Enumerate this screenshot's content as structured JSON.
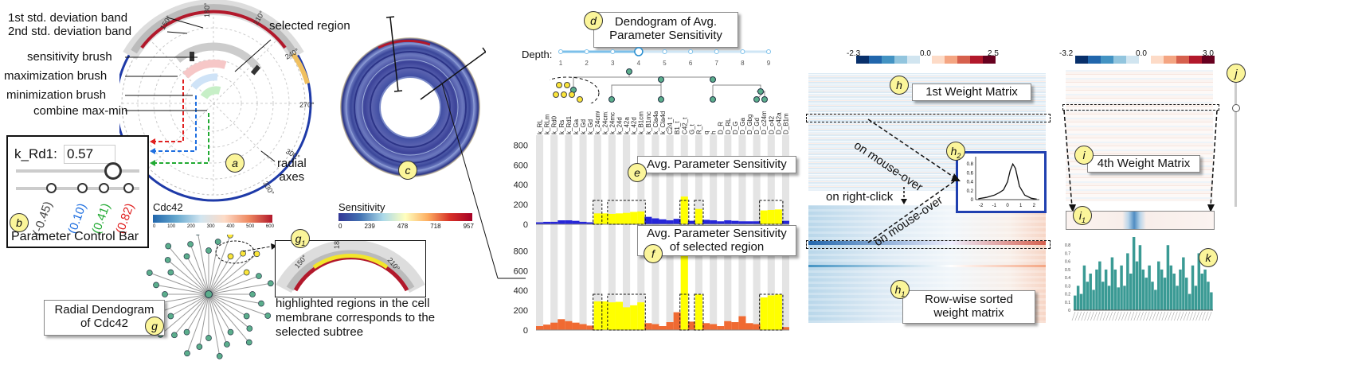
{
  "panel_a": {
    "badge": "a",
    "labels": {
      "std1": "1st std. deviation band",
      "std2": "2nd std. deviation band",
      "sens_brush": "sensitivity brush",
      "max_brush": "maximization brush",
      "min_brush": "minimization brush",
      "combine": "combine max-min",
      "radial_axes": "radial\naxes",
      "selected_region": "selected region"
    },
    "angles": [
      "0°",
      "30°",
      "60°",
      "90°",
      "120°",
      "150°",
      "180°",
      "210°",
      "240°",
      "270°",
      "300°",
      "330°"
    ]
  },
  "panel_b": {
    "badge": "b",
    "param_name": "k_Rd1:",
    "param_value": "0.57",
    "title": "Parameter Control Bar",
    "values": [
      "(-0.45)",
      "(0.10)",
      "(0.41)",
      "(0.82)"
    ],
    "colors": [
      "#444444",
      "#1f6fe0",
      "#22aa33",
      "#e02020"
    ]
  },
  "panel_c": {
    "badge": "c",
    "legend_title": "Sensitivity",
    "legend_ticks": [
      "0",
      "239",
      "478",
      "718",
      "957"
    ]
  },
  "panel_cdc": {
    "legend_title": "Cdc42",
    "legend_ticks": [
      "0",
      "100",
      "200",
      "300",
      "400",
      "500",
      "600"
    ]
  },
  "panel_d": {
    "badge": "d",
    "title": "Dendogram of Avg.\nParameter Sensitivity",
    "depth_label": "Depth:",
    "depth_ticks": [
      "1",
      "2",
      "3",
      "4",
      "5",
      "6",
      "7",
      "8",
      "9"
    ],
    "depth_value": 4
  },
  "panel_e": {
    "badge": "e",
    "title": "Avg. Parameter Sensitivity",
    "yticks": [
      "800",
      "600",
      "400",
      "200",
      "0"
    ]
  },
  "panel_f": {
    "badge": "f",
    "title": "Avg. Parameter Sensitivity\nof selected region",
    "yticks": [
      "800",
      "600",
      "400",
      "200",
      "0"
    ]
  },
  "params": [
    "k_RL",
    "k_RLm",
    "k_Rd0",
    "k_Rs",
    "k_Rd1",
    "k_Ga",
    "k_Gd",
    "k_Gd",
    "k_24cm0",
    "k_24cm1",
    "k_24mc",
    "k_24d",
    "k_42a",
    "k_42d",
    "k_B1cm",
    "k_B1mc",
    "k_Cla4a",
    "k_Cla4d",
    "C24_t",
    "B1_t",
    "C42_t",
    "G_t",
    "R_t",
    "q",
    "h",
    "D_R",
    "D_RL",
    "D_G",
    "D_Ga",
    "D_Gbg",
    "D_Gd",
    "D_c24m",
    "D_c42",
    "D_c42a",
    "D_B1m"
  ],
  "chart_data": [
    {
      "type": "bar",
      "title": "Avg. Parameter Sensitivity",
      "categories_ref": "params",
      "ylim": [
        0,
        900
      ],
      "values": [
        20,
        25,
        25,
        40,
        40,
        35,
        25,
        20,
        110,
        110,
        105,
        110,
        115,
        125,
        130,
        75,
        60,
        50,
        40,
        55,
        280,
        35,
        155,
        45,
        40,
        30,
        40,
        35,
        30,
        30,
        30,
        140,
        145,
        150,
        35
      ],
      "highlighted": [
        8,
        10,
        11,
        12,
        13,
        14,
        20,
        22,
        31,
        32
      ]
    },
    {
      "type": "bar",
      "title": "Avg. Parameter Sensitivity of selected region",
      "categories_ref": "params",
      "ylim": [
        0,
        900
      ],
      "values": [
        40,
        55,
        75,
        110,
        90,
        75,
        60,
        45,
        290,
        290,
        280,
        285,
        230,
        250,
        280,
        70,
        60,
        40,
        80,
        180,
        880,
        85,
        360,
        70,
        60,
        40,
        90,
        80,
        140,
        70,
        60,
        330,
        350,
        360,
        30
      ],
      "highlighted": [
        8,
        10,
        11,
        12,
        13,
        14,
        20,
        22,
        31,
        32
      ]
    },
    {
      "type": "bar",
      "title": "k",
      "values": [
        0.18,
        0.3,
        0.2,
        0.55,
        0.35,
        0.45,
        0.25,
        0.5,
        0.6,
        0.35,
        0.5,
        0.3,
        0.65,
        0.5,
        0.28,
        0.55,
        0.3,
        0.7,
        0.45,
        0.9,
        0.6,
        0.8,
        0.5,
        0.4,
        0.55,
        0.35,
        0.25,
        0.6,
        0.5,
        0.4,
        0.8,
        0.55,
        0.45,
        0.3,
        0.5,
        0.65,
        0.4,
        0.2,
        0.55,
        0.3,
        0.7,
        0.45,
        0.5,
        0.35,
        0.22
      ],
      "ylim": [
        0,
        0.9
      ],
      "yticks": [
        "0.8",
        "0.7",
        "0.6",
        "0.5",
        "0.4",
        "0.3",
        "0.2",
        "0.1",
        "0"
      ]
    },
    {
      "type": "line",
      "title": "density",
      "x": [
        -2.2,
        -1.6,
        -1.0,
        -0.6,
        -0.3,
        0.0,
        0.2,
        0.4,
        0.6,
        0.9,
        1.3,
        1.8,
        2.2
      ],
      "values": [
        0.02,
        0.05,
        0.1,
        0.16,
        0.22,
        0.4,
        0.65,
        0.8,
        0.7,
        0.3,
        0.1,
        0.03,
        0.01
      ],
      "xticks": [
        "-2",
        "-1",
        "0",
        "1",
        "2"
      ],
      "yticks": [
        "0.8",
        "0.6",
        "0.4",
        "0.2",
        "0"
      ]
    }
  ],
  "panel_g": {
    "badge": "g",
    "title": "Radial Dendogram\nof Cdc42",
    "g1_badge": "g",
    "g1_sub": "1",
    "caption": "highlighted regions in the cell\nmembrane corresponds to the\nselected subtree"
  },
  "panel_h": {
    "h_badge": "h",
    "title": "1st Weight Matrix",
    "h1_sub": "1",
    "h1_title": "Row-wise sorted\nweight matrix",
    "h2_sub": "2",
    "legend_ticks": [
      "-2.3",
      "0.0",
      "2.5"
    ],
    "mouse_over_1": "on mouse-over",
    "mouse_over_2": "on mouse-over",
    "right_click": "on right-click"
  },
  "panel_i": {
    "i_badge": "i",
    "title": "4th Weight Matrix",
    "i1_sub": "1",
    "legend_ticks": [
      "-3.2",
      "0.0",
      "3.0"
    ],
    "j_badge": "j",
    "k_badge": "k"
  }
}
